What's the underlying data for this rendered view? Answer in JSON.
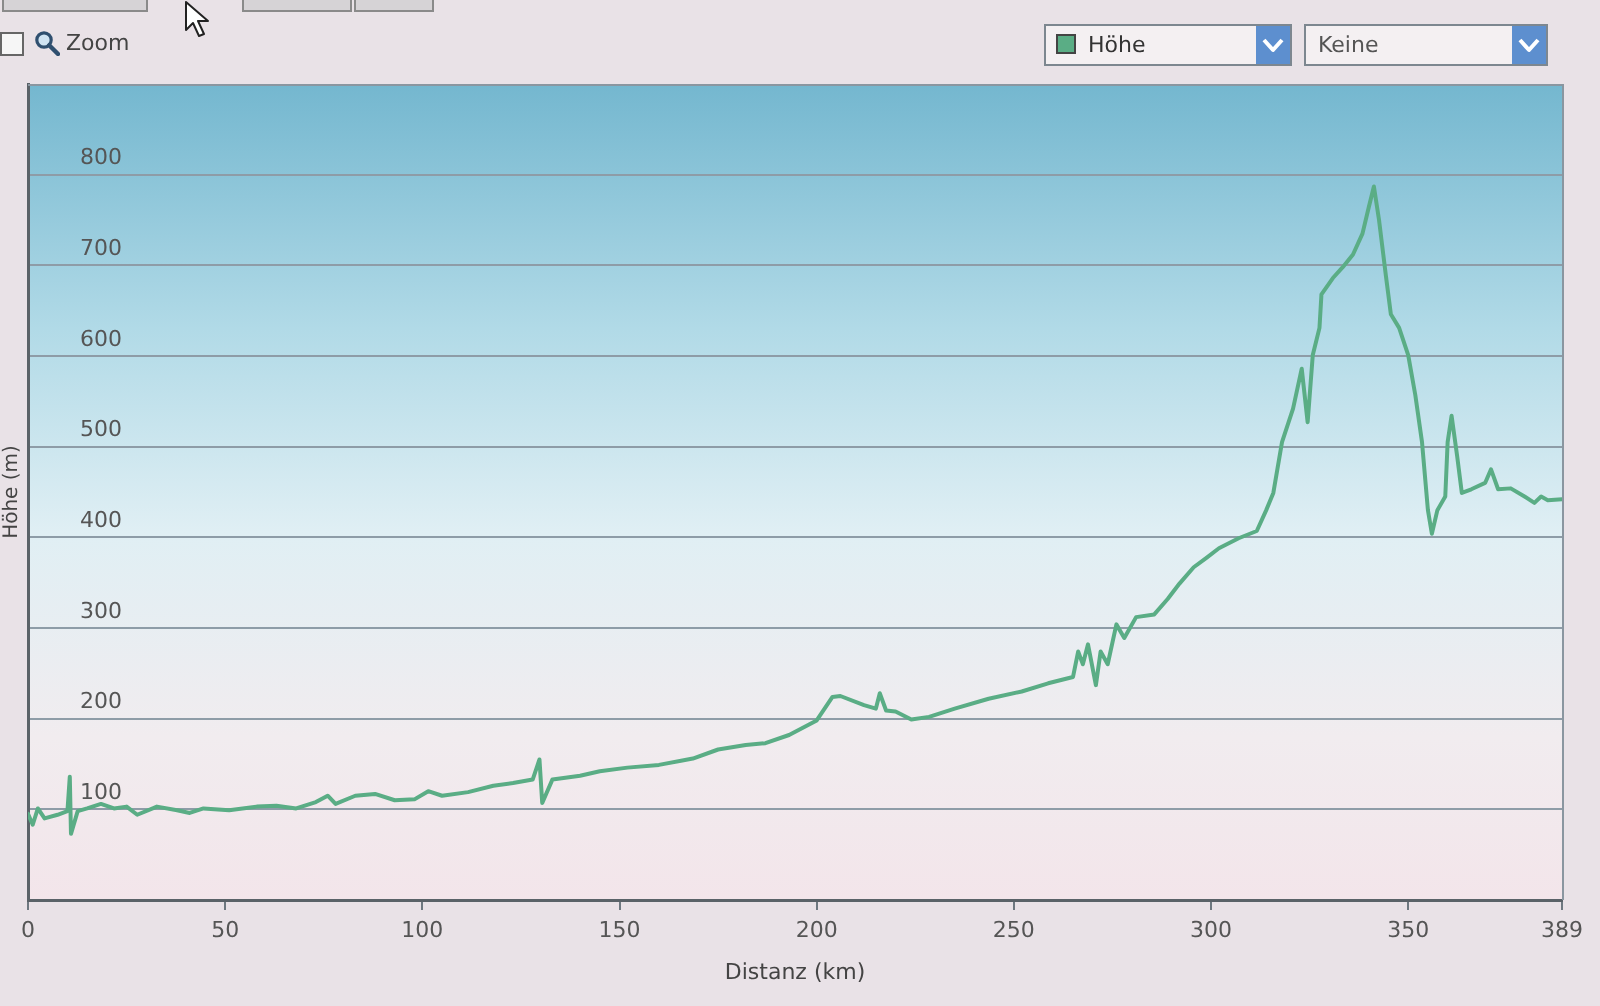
{
  "chart_data": {
    "type": "line",
    "xlabel": "Distanz (km)",
    "ylabel": "Höhe (m)",
    "annotations": [
      "Zoom",
      "Höhe",
      "Keine"
    ],
    "x": [
      0,
      1.2,
      2.5,
      4.2,
      7.5,
      10,
      10.6,
      10.9,
      12.6,
      15,
      18.5,
      21.8,
      25,
      27.7,
      32.7,
      37.8,
      41,
      44.5,
      51,
      58,
      63,
      68,
      73,
      76,
      78,
      83,
      88,
      93,
      98,
      101.5,
      105,
      111.6,
      118,
      123,
      128,
      129.7,
      130.4,
      133,
      140,
      145,
      152,
      160,
      168.6,
      175,
      182,
      187,
      193,
      200,
      204,
      206,
      212,
      215,
      216,
      217.6,
      220,
      224,
      228.5,
      235,
      243.6,
      252,
      258.7,
      265,
      266.3,
      267.5,
      268.8,
      270.8,
      272,
      273.8,
      276,
      278,
      281,
      285.6,
      289,
      292,
      295.6,
      299,
      302,
      307,
      311.6,
      314,
      315.8,
      318,
      320.8,
      323,
      324.5,
      325.8,
      327.5,
      328,
      330.9,
      333.4,
      336,
      338.4,
      340,
      341.3,
      342.6,
      344.3,
      345.6,
      347.7,
      350,
      351.8,
      353.5,
      355,
      356,
      357.4,
      359.4,
      360,
      361,
      362.4,
      363.6,
      366,
      369.5,
      371,
      372.8,
      376,
      379.5,
      382,
      383.7,
      385.4,
      389
    ],
    "series": [
      {
        "color": "#5aad85",
        "values": [
          95,
          83,
          101,
          90,
          94,
          98,
          136,
          73,
          98,
          101,
          106,
          101,
          103,
          94,
          103,
          99,
          96,
          101,
          99,
          103,
          104,
          101,
          108,
          115,
          106,
          115,
          117,
          110,
          111,
          120,
          115,
          119,
          126,
          129,
          133,
          155,
          107,
          133,
          137,
          142,
          146,
          149,
          156,
          166,
          171,
          173,
          182,
          198,
          224,
          225,
          215,
          211,
          228,
          209,
          208,
          199,
          202,
          211,
          222,
          230,
          239,
          246,
          274,
          260,
          282,
          237,
          274,
          260,
          304,
          289,
          312,
          315,
          332,
          349,
          367,
          378,
          388,
          399,
          407,
          430,
          449,
          505,
          542,
          586,
          527,
          601,
          631,
          668,
          686,
          698,
          712,
          735,
          764,
          787,
          750,
          690,
          646,
          631,
          601,
          557,
          505,
          430,
          404,
          430,
          445,
          505,
          534,
          490,
          449,
          453,
          460,
          475,
          453,
          454,
          445,
          438,
          445,
          441,
          442
        ]
      }
    ],
    "xlim": [
      0,
      389
    ],
    "xticks": [
      0,
      50,
      100,
      150,
      200,
      250,
      300,
      350,
      389
    ],
    "ylim": [
      0,
      900
    ],
    "yticks": [
      100,
      200,
      300,
      400,
      500,
      600,
      700,
      800
    ],
    "grid": "y"
  }
}
